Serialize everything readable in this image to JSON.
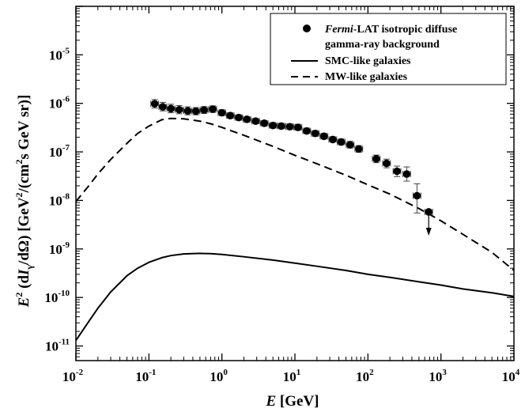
{
  "chart_data": {
    "type": "scatter",
    "title": "",
    "xlabel_parts": {
      "var": "E",
      "unit": " [GeV]"
    },
    "ylabel_parts": {
      "a": "E",
      "a_sup": "2",
      "b": " (d",
      "c": "I",
      "c_sub": "γ",
      "d": "/dΩ) [GeV",
      "d_sup": "2",
      "e": "/(cm",
      "e_sup": "2",
      "f": "s GeV sr)]"
    },
    "xscale": "log",
    "yscale": "log",
    "xlim": [
      0.01,
      10000
    ],
    "ylim": [
      5e-12,
      0.0001
    ],
    "x_tick_exponents": [
      -2,
      -1,
      0,
      1,
      2,
      3,
      4
    ],
    "y_tick_exponents": [
      -11,
      -10,
      -9,
      -8,
      -7,
      -6,
      -5
    ],
    "tick_base": "10",
    "legend": {
      "placement": "top-right",
      "points_label_italic": "Fermi",
      "points_label_rest": "-LAT isotropic diffuse",
      "points_label_line2": "gamma-ray background",
      "smc_label": "SMC-like galaxies",
      "mw_label": "MW-like galaxies"
    },
    "series": [
      {
        "name": "Fermi-LAT isotropic diffuse gamma-ray background",
        "kind": "points",
        "points": [
          {
            "x": 0.12,
            "y": 9.8e-07,
            "ylo": 8e-07,
            "yhi": 1.2e-06
          },
          {
            "x": 0.155,
            "y": 8.5e-07,
            "ylo": 7e-07,
            "yhi": 1.05e-06
          },
          {
            "x": 0.2,
            "y": 7.8e-07,
            "ylo": 6.4e-07,
            "yhi": 9.6e-07
          },
          {
            "x": 0.26,
            "y": 7.4e-07,
            "ylo": 6.1e-07,
            "yhi": 9e-07
          },
          {
            "x": 0.34,
            "y": 7e-07,
            "ylo": 5.8e-07,
            "yhi": 8.5e-07
          },
          {
            "x": 0.44,
            "y": 6.9e-07,
            "ylo": 5.8e-07,
            "yhi": 8.2e-07
          },
          {
            "x": 0.57,
            "y": 7.3e-07,
            "ylo": 6.2e-07,
            "yhi": 8.6e-07
          },
          {
            "x": 0.75,
            "y": 7.6e-07,
            "ylo": 6.5e-07,
            "yhi": 8.9e-07
          },
          {
            "x": 1.0,
            "y": 6.4e-07,
            "ylo": 5.6e-07,
            "yhi": 7.4e-07
          },
          {
            "x": 1.3,
            "y": 5.6e-07,
            "ylo": 4.9e-07,
            "yhi": 6.4e-07
          },
          {
            "x": 1.7,
            "y": 5.1e-07,
            "ylo": 4.5e-07,
            "yhi": 5.8e-07
          },
          {
            "x": 2.2,
            "y": 4.7e-07,
            "ylo": 4.1e-07,
            "yhi": 5.3e-07
          },
          {
            "x": 2.9,
            "y": 4.3e-07,
            "ylo": 3.8e-07,
            "yhi": 4.9e-07
          },
          {
            "x": 3.8,
            "y": 3.9e-07,
            "ylo": 3.4e-07,
            "yhi": 4.4e-07
          },
          {
            "x": 5.0,
            "y": 3.5e-07,
            "ylo": 3.1e-07,
            "yhi": 4e-07
          },
          {
            "x": 6.5,
            "y": 3.4e-07,
            "ylo": 3e-07,
            "yhi": 3.9e-07
          },
          {
            "x": 8.5,
            "y": 3.3e-07,
            "ylo": 2.9e-07,
            "yhi": 3.8e-07
          },
          {
            "x": 11.0,
            "y": 3.2e-07,
            "ylo": 2.8e-07,
            "yhi": 3.7e-07
          },
          {
            "x": 14.5,
            "y": 2.7e-07,
            "ylo": 2.4e-07,
            "yhi": 3.1e-07
          },
          {
            "x": 19.0,
            "y": 2.4e-07,
            "ylo": 2.1e-07,
            "yhi": 2.75e-07
          },
          {
            "x": 25.0,
            "y": 2.1e-07,
            "ylo": 1.85e-07,
            "yhi": 2.4e-07
          },
          {
            "x": 33.0,
            "y": 1.8e-07,
            "ylo": 1.6e-07,
            "yhi": 2.05e-07
          },
          {
            "x": 43.0,
            "y": 1.6e-07,
            "ylo": 1.4e-07,
            "yhi": 1.85e-07
          },
          {
            "x": 57.0,
            "y": 1.4e-07,
            "ylo": 1.2e-07,
            "yhi": 1.65e-07
          },
          {
            "x": 75.0,
            "y": 1.15e-07,
            "ylo": 9.8e-08,
            "yhi": 1.35e-07
          },
          {
            "x": 130.0,
            "y": 7.2e-08,
            "ylo": 6e-08,
            "yhi": 8.6e-08
          },
          {
            "x": 180.0,
            "y": 5.8e-08,
            "ylo": 4.7e-08,
            "yhi": 7.1e-08
          },
          {
            "x": 250.0,
            "y": 4e-08,
            "ylo": 3.1e-08,
            "yhi": 5.1e-08
          },
          {
            "x": 340.0,
            "y": 3.5e-08,
            "ylo": 2.5e-08,
            "yhi": 4.9e-08
          },
          {
            "x": 470.0,
            "y": 1.25e-08,
            "ylo": 5.5e-09,
            "yhi": 2.2e-08
          }
        ],
        "upper_limit": {
          "x": 680.0,
          "y": 5.8e-09
        }
      },
      {
        "name": "SMC-like galaxies",
        "kind": "solid",
        "points": [
          [
            0.01,
            1.3e-11
          ],
          [
            0.015,
            3.2e-11
          ],
          [
            0.02,
            6e-11
          ],
          [
            0.03,
            1.3e-10
          ],
          [
            0.05,
            2.8e-10
          ],
          [
            0.07,
            4e-10
          ],
          [
            0.1,
            5.3e-10
          ],
          [
            0.15,
            6.6e-10
          ],
          [
            0.2,
            7.3e-10
          ],
          [
            0.3,
            7.9e-10
          ],
          [
            0.5,
            8.1e-10
          ],
          [
            0.7,
            8e-10
          ],
          [
            1.0,
            7.7e-10
          ],
          [
            2.0,
            6.9e-10
          ],
          [
            5.0,
            5.9e-10
          ],
          [
            10.0,
            5.1e-10
          ],
          [
            20.0,
            4.4e-10
          ],
          [
            50.0,
            3.6e-10
          ],
          [
            100.0,
            3e-10
          ],
          [
            200.0,
            2.6e-10
          ],
          [
            500.0,
            2.1e-10
          ],
          [
            1000.0,
            1.8e-10
          ],
          [
            2000.0,
            1.5e-10
          ],
          [
            5000.0,
            1.25e-10
          ],
          [
            10000.0,
            1.05e-10
          ]
        ]
      },
      {
        "name": "MW-like galaxies",
        "kind": "dashed",
        "points": [
          [
            0.01,
            9.5e-09
          ],
          [
            0.015,
            2e-08
          ],
          [
            0.02,
            3.5e-08
          ],
          [
            0.03,
            7e-08
          ],
          [
            0.05,
            1.5e-07
          ],
          [
            0.07,
            2.4e-07
          ],
          [
            0.1,
            3.4e-07
          ],
          [
            0.15,
            4.6e-07
          ],
          [
            0.2,
            4.9e-07
          ],
          [
            0.3,
            4.8e-07
          ],
          [
            0.5,
            4.3e-07
          ],
          [
            0.7,
            3.8e-07
          ],
          [
            1.0,
            3.2e-07
          ],
          [
            2.0,
            2.2e-07
          ],
          [
            5.0,
            1.3e-07
          ],
          [
            10.0,
            8.5e-08
          ],
          [
            20.0,
            5.7e-08
          ],
          [
            50.0,
            3.3e-08
          ],
          [
            100.0,
            2.1e-08
          ],
          [
            200.0,
            1.35e-08
          ],
          [
            500.0,
            6.8e-09
          ],
          [
            1000.0,
            3.8e-09
          ],
          [
            2000.0,
            2e-09
          ],
          [
            5000.0,
            8.5e-10
          ],
          [
            10000.0,
            3.6e-10
          ]
        ]
      }
    ]
  }
}
